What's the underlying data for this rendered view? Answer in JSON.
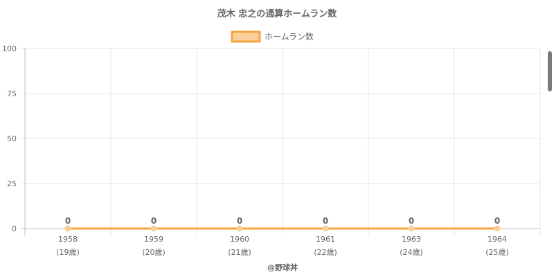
{
  "chart_data": {
    "type": "line",
    "title": "茂木 忠之の通算ホームラン数",
    "categories": [
      "1958",
      "1959",
      "1960",
      "1961",
      "1963",
      "1964"
    ],
    "age_labels": [
      "(19歳)",
      "(20歳)",
      "(21歳)",
      "(22歳)",
      "(24歳)",
      "(25歳)"
    ],
    "series": [
      {
        "name": "ホームラン数",
        "values": [
          0,
          0,
          0,
          0,
          0,
          0
        ]
      }
    ],
    "ylim": [
      0,
      100
    ],
    "yticks": [
      0,
      25,
      50,
      75,
      100
    ],
    "grid": true,
    "legend_position": "top",
    "colors": {
      "line": "#f7a541",
      "fill": "#fbcf99",
      "grid": "#e5e5e5",
      "axis": "#bdbdbd"
    }
  },
  "credit": "@野球丼"
}
